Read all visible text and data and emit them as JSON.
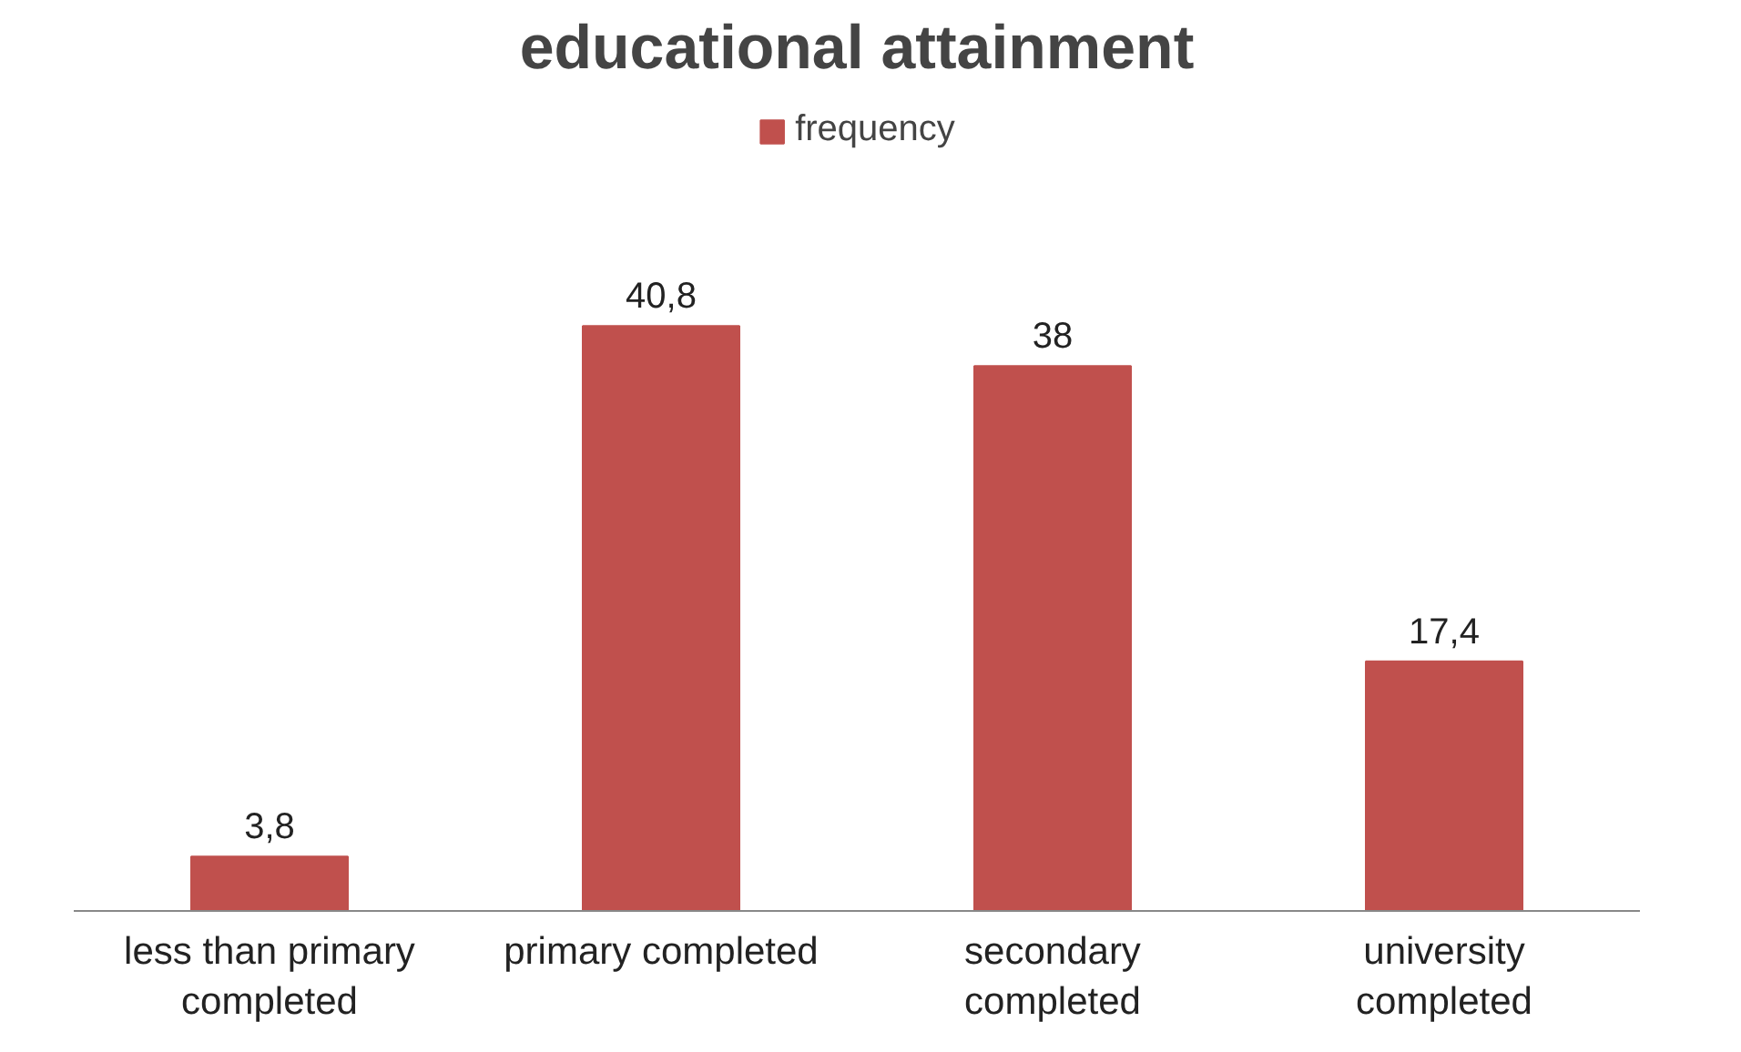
{
  "chart_data": {
    "type": "bar",
    "title": "educational attainment",
    "categories": [
      "less than primary completed",
      "primary completed",
      "secondary completed",
      "university completed"
    ],
    "series": [
      {
        "name": "frequency",
        "color": "#c0504d",
        "values": [
          3.8,
          40.8,
          38,
          17.4
        ],
        "value_labels": [
          "3,8",
          "40,8",
          "38",
          "17,4"
        ]
      }
    ],
    "legend": "top"
  }
}
